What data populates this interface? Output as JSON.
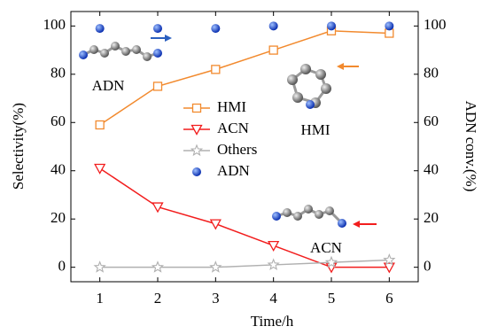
{
  "chart_data": {
    "type": "line",
    "x": [
      1,
      2,
      3,
      4,
      5,
      6
    ],
    "xlim": [
      0.5,
      6.5
    ],
    "xticks": [
      1,
      2,
      3,
      4,
      5,
      6
    ],
    "ylim": [
      -6,
      106
    ],
    "yticks": [
      0,
      20,
      40,
      60,
      80,
      100
    ],
    "y2lim": [
      -6,
      106
    ],
    "y2ticks": [
      0,
      20,
      40,
      60,
      80,
      100
    ],
    "xlabel": "Time/h",
    "ylabel": "Selectivity(%)",
    "y2label": "ADN conv.(%)",
    "legend": "center",
    "annotations": [
      "ADN",
      "HMI",
      "ACN"
    ],
    "series": [
      {
        "name": "HMI",
        "color": "#f28a2e",
        "marker": "square",
        "values": [
          59,
          75,
          82,
          90,
          98,
          97
        ]
      },
      {
        "name": "ACN",
        "color": "#f21d1d",
        "marker": "triangle-down",
        "values": [
          41,
          25,
          18,
          9,
          0,
          0
        ]
      },
      {
        "name": "Others",
        "color": "#b0b0b0",
        "marker": "star",
        "values": [
          0,
          0,
          0,
          1,
          2,
          3
        ]
      },
      {
        "name": "ADN",
        "color": "#1f4fd6",
        "marker": "circle",
        "axis": "y2",
        "values": [
          99,
          99,
          99,
          100,
          100,
          100
        ]
      }
    ]
  }
}
